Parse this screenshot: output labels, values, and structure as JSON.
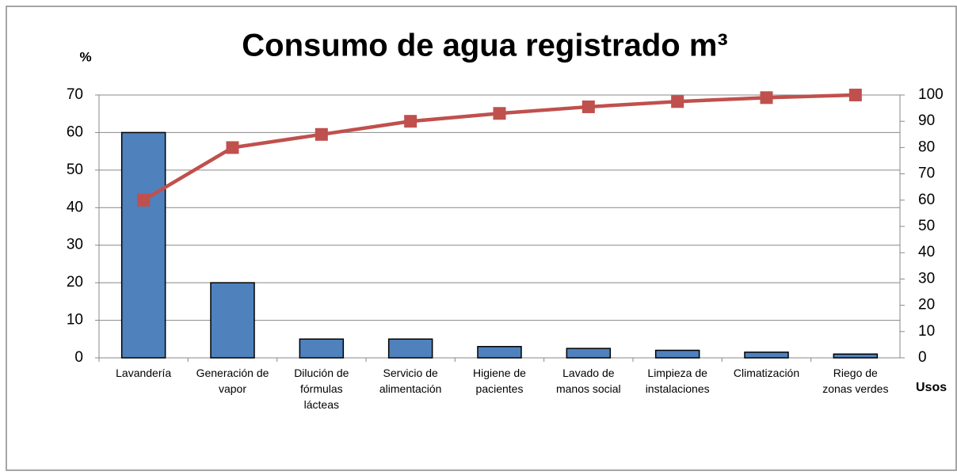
{
  "chart_data": {
    "type": "pareto",
    "title": "Consumo de agua registrado m³",
    "y_label": "%",
    "x_label": "Usos",
    "categories": [
      "Lavandería",
      "Generación de\nvapor",
      "Dilución de\nfórmulas\nlácteas",
      "Servicio de\nalimentación",
      "Higiene de\npacientes",
      "Lavado de\nmanos social",
      "Limpieza de\ninstalaciones",
      "Climatización",
      "Riego de\nzonas verdes"
    ],
    "series": [
      {
        "type": "bar",
        "color": "#4f81bd",
        "values": [
          60,
          20,
          5,
          5,
          3,
          2.5,
          2,
          1.5,
          1
        ]
      },
      {
        "type": "line",
        "axis": "y2",
        "color": "#c0504d",
        "values": [
          60,
          80,
          85,
          90,
          93,
          95.5,
          97.5,
          99,
          100
        ]
      }
    ],
    "ylim": [
      0,
      70
    ],
    "yticks": [
      0,
      10,
      20,
      30,
      40,
      50,
      60,
      70
    ],
    "y2lim": [
      0,
      100
    ],
    "y2ticks": [
      0,
      10,
      20,
      30,
      40,
      50,
      60,
      70,
      80,
      90,
      100
    ],
    "grid": true
  }
}
